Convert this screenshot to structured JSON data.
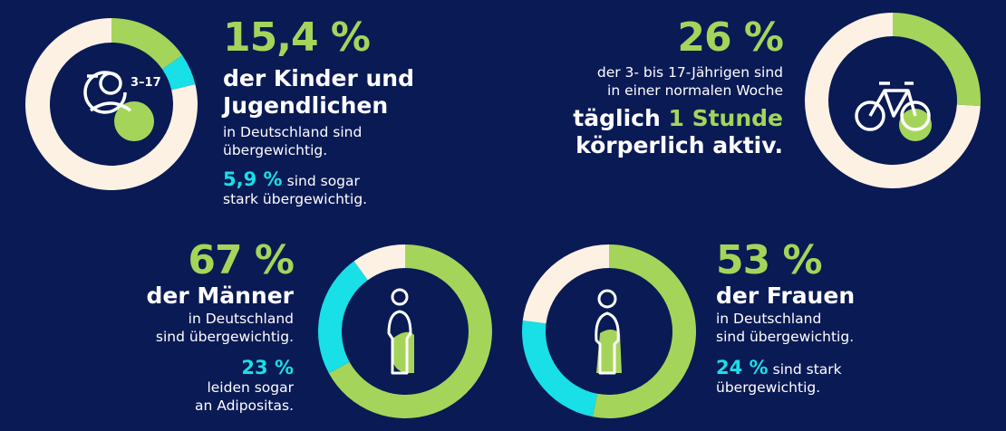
{
  "children": {
    "big_percent": "15,4 %",
    "headline_1": "der Kinder und",
    "headline_2": "Jugendlichen",
    "sub_1": "in Deutschland sind",
    "sub_2": "übergewichtig.",
    "secondary_percent": "5,9 %",
    "secondary_text_1": "sind sogar",
    "secondary_text_2": "stark übergewichtig.",
    "age_label": "3–17",
    "chart": {
      "values": [
        15.4,
        5.9
      ]
    }
  },
  "activity": {
    "big_percent": "26 %",
    "sub_1": "der 3- bis 17-Jährigen sind",
    "sub_2": "in einer normalen Woche",
    "headline_1a": "täglich",
    "headline_1b": "1 Stunde",
    "headline_2": "körperlich aktiv.",
    "chart": {
      "values": [
        26
      ]
    }
  },
  "men": {
    "big_percent": "67 %",
    "headline": "der Männer",
    "sub_1": "in Deutschland",
    "sub_2": "sind übergewichtig.",
    "secondary_percent": "23 %",
    "secondary_text_1": "leiden sogar",
    "secondary_text_2": "an Adipositas.",
    "chart": {
      "values": [
        67,
        23
      ]
    }
  },
  "women": {
    "big_percent": "53 %",
    "headline": "der Frauen",
    "sub_1": "in Deutschland",
    "sub_2": "sind übergewichtig.",
    "secondary_percent": "24 %",
    "secondary_text_1": "sind stark",
    "secondary_text_2": "übergewichtig.",
    "chart": {
      "values": [
        53,
        24
      ]
    }
  },
  "colors": {
    "background": "#0a1a55",
    "green": "#a4d55a",
    "cyan": "#19dfe6",
    "cream": "#fdf1e3",
    "white": "#ffffff"
  }
}
